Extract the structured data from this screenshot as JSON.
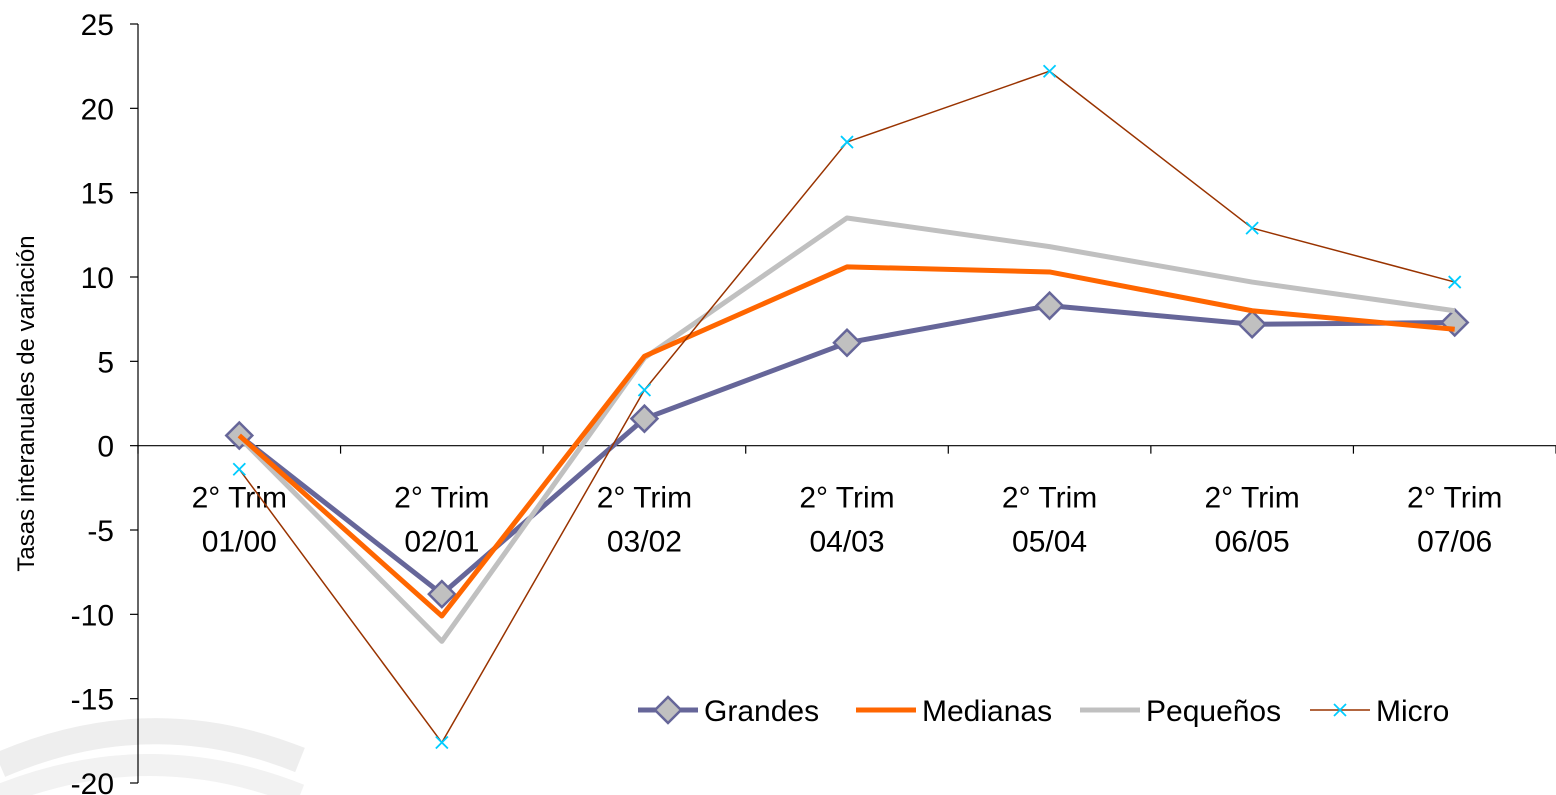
{
  "chart_data": {
    "type": "line",
    "title": "",
    "xlabel": "",
    "ylabel": "Tasas interanuales de variación",
    "categories": [
      [
        "2° Trim",
        "01/00"
      ],
      [
        "2° Trim",
        "02/01"
      ],
      [
        "2° Trim",
        "03/02"
      ],
      [
        "2° Trim",
        "04/03"
      ],
      [
        "2° Trim",
        "05/04"
      ],
      [
        "2° Trim",
        "06/05"
      ],
      [
        "2° Trim",
        "07/06"
      ]
    ],
    "ylim": [
      -20,
      25
    ],
    "yticks": [
      25,
      20,
      15,
      10,
      5,
      0,
      -5,
      -10,
      -15,
      -20
    ],
    "grid": false,
    "legend_position": "bottom-right",
    "series": [
      {
        "name": "Grandes",
        "color": "#666699",
        "marker": "diamond",
        "values": [
          0.6,
          -8.8,
          1.6,
          6.1,
          8.3,
          7.2,
          7.3
        ]
      },
      {
        "name": "Medianas",
        "color": "#FF6600",
        "marker": "none",
        "values": [
          0.6,
          -10.1,
          5.3,
          10.6,
          10.3,
          8.0,
          6.9
        ]
      },
      {
        "name": "Pequeños",
        "color": "#C0C0C0",
        "marker": "none",
        "values": [
          0.5,
          -11.6,
          5.2,
          13.5,
          11.8,
          9.7,
          8.0
        ]
      },
      {
        "name": "Micro",
        "color": "#993300",
        "marker": "x",
        "marker_color": "#00CCFF",
        "values": [
          -1.4,
          -17.6,
          3.3,
          18.0,
          22.2,
          12.9,
          9.7
        ]
      }
    ]
  }
}
